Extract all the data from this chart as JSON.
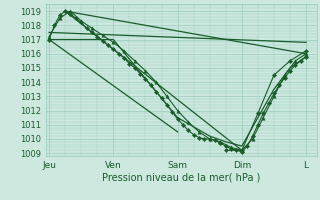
{
  "background_color": "#cce8df",
  "grid_color": "#99ccbb",
  "line_color": "#1a5c2a",
  "marker_color": "#1a5c2a",
  "ylabel_ticks": [
    1009,
    1010,
    1011,
    1012,
    1013,
    1014,
    1015,
    1016,
    1017,
    1018,
    1019
  ],
  "ylim": [
    1008.8,
    1019.5
  ],
  "xlabel": "Pression niveau de la mer( hPa )",
  "xtick_labels": [
    "Jeu",
    "Ven",
    "Sam",
    "Dim",
    "L"
  ],
  "xtick_positions": [
    0,
    24,
    48,
    72,
    96
  ],
  "xlim": [
    -1,
    100
  ],
  "series": [
    {
      "x": [
        0,
        2,
        4,
        6,
        8,
        10,
        12,
        14,
        16,
        18,
        20,
        22,
        24,
        26,
        28,
        30,
        32,
        34,
        36,
        38,
        40,
        42,
        44,
        46,
        48,
        50,
        52,
        54,
        56,
        58,
        60,
        62,
        64,
        66,
        68,
        70,
        72,
        74,
        76,
        78,
        80,
        82,
        84,
        86,
        88,
        90,
        92,
        94,
        96
      ],
      "y": [
        1017.0,
        1018.0,
        1018.7,
        1019.0,
        1018.8,
        1018.5,
        1018.2,
        1017.8,
        1017.5,
        1017.2,
        1016.9,
        1016.6,
        1016.3,
        1016.0,
        1015.7,
        1015.3,
        1015.0,
        1014.6,
        1014.2,
        1013.8,
        1013.3,
        1012.9,
        1012.4,
        1011.9,
        1011.4,
        1011.0,
        1010.6,
        1010.3,
        1010.1,
        1010.0,
        1010.0,
        1009.9,
        1009.7,
        1009.5,
        1009.3,
        1009.2,
        1009.1,
        1009.5,
        1010.2,
        1011.0,
        1011.8,
        1012.5,
        1013.2,
        1013.8,
        1014.3,
        1014.8,
        1015.2,
        1015.5,
        1015.8
      ],
      "marker": "D",
      "markersize": 2.2,
      "linewidth": 0.8
    },
    {
      "x": [
        0,
        4,
        8,
        12,
        16,
        20,
        24,
        28,
        32,
        36,
        40,
        44,
        48,
        52,
        56,
        60,
        64,
        68,
        72,
        76,
        80,
        84,
        88,
        92,
        96
      ],
      "y": [
        1017.2,
        1018.5,
        1019.0,
        1018.3,
        1017.8,
        1017.3,
        1016.8,
        1016.2,
        1015.5,
        1014.8,
        1014.0,
        1013.0,
        1012.0,
        1011.2,
        1010.5,
        1010.0,
        1009.8,
        1009.4,
        1009.2,
        1010.0,
        1011.5,
        1013.0,
        1014.5,
        1015.5,
        1016.0
      ],
      "marker": "^",
      "markersize": 2.5,
      "linewidth": 0.8
    },
    {
      "x": [
        0,
        96
      ],
      "y": [
        1017.5,
        1016.8
      ],
      "marker": null,
      "markersize": 0,
      "linewidth": 0.9
    },
    {
      "x": [
        6,
        96
      ],
      "y": [
        1019.0,
        1016.0
      ],
      "marker": null,
      "markersize": 0,
      "linewidth": 0.9
    },
    {
      "x": [
        0,
        24,
        48,
        60,
        66,
        72,
        78,
        84,
        90,
        96
      ],
      "y": [
        1017.0,
        1017.0,
        1011.5,
        1010.2,
        1009.8,
        1009.5,
        1011.5,
        1013.5,
        1015.0,
        1015.8
      ],
      "marker": null,
      "markersize": 0,
      "linewidth": 0.9
    },
    {
      "x": [
        6,
        72
      ],
      "y": [
        1019.0,
        1009.2
      ],
      "marker": null,
      "markersize": 0,
      "linewidth": 0.9
    },
    {
      "x": [
        0,
        48
      ],
      "y": [
        1017.0,
        1010.5
      ],
      "marker": null,
      "markersize": 0,
      "linewidth": 0.9
    },
    {
      "x": [
        66,
        72,
        78,
        84,
        90,
        96
      ],
      "y": [
        1009.2,
        1009.2,
        1011.8,
        1014.5,
        1015.5,
        1016.2
      ],
      "marker": "D",
      "markersize": 2.2,
      "linewidth": 0.8
    }
  ]
}
